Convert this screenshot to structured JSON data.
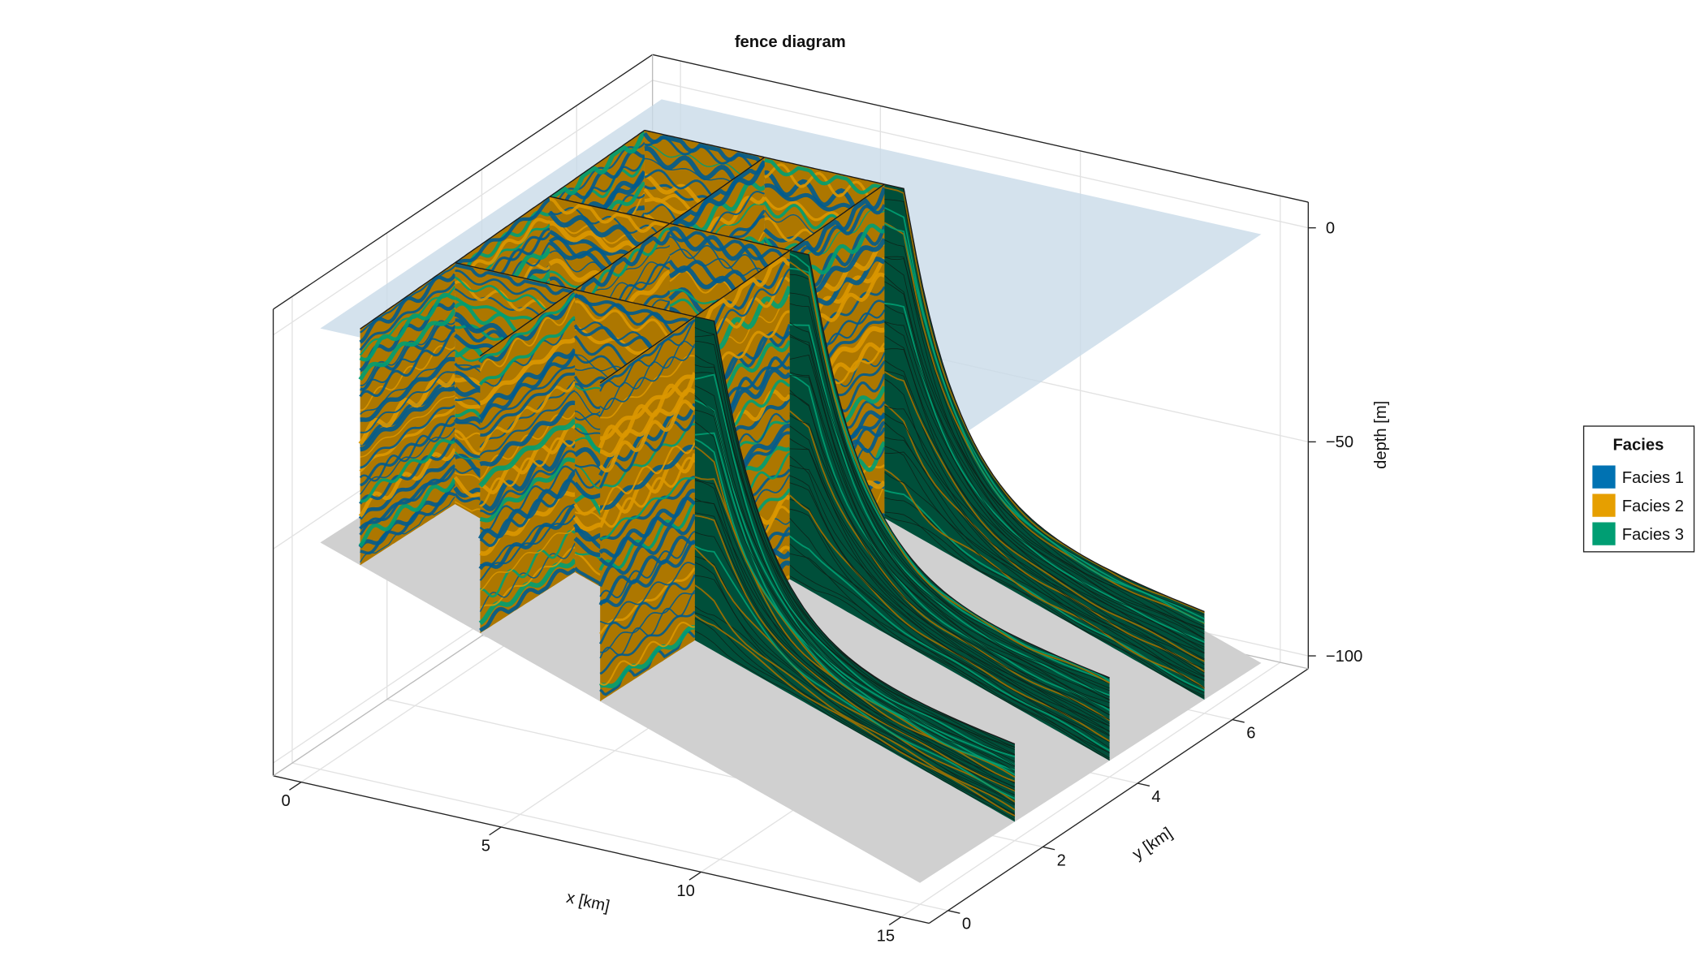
{
  "chart_data": {
    "type": "fence3d",
    "title": "fence diagram",
    "xlabel": "x [km]",
    "ylabel": "y [km]",
    "zlabel": "depth [m]",
    "xlim": [
      -0.7,
      15.7
    ],
    "ylim": [
      -0.4,
      7.6
    ],
    "zlim": [
      -103,
      6
    ],
    "xticks": [
      0,
      5,
      10,
      15
    ],
    "yticks": [
      0,
      2,
      4,
      6
    ],
    "zticks": [
      {
        "value": -100,
        "label": "−100"
      },
      {
        "value": -50,
        "label": "−50"
      },
      0
    ],
    "grid": true,
    "legend": {
      "title": "Facies",
      "position": "right"
    },
    "series": [
      {
        "name": "Facies 1",
        "color": "#0072b2"
      },
      {
        "name": "Facies 2",
        "color": "#e69f00"
      },
      {
        "name": "Facies 3",
        "color": "#009e73"
      }
    ]
  }
}
